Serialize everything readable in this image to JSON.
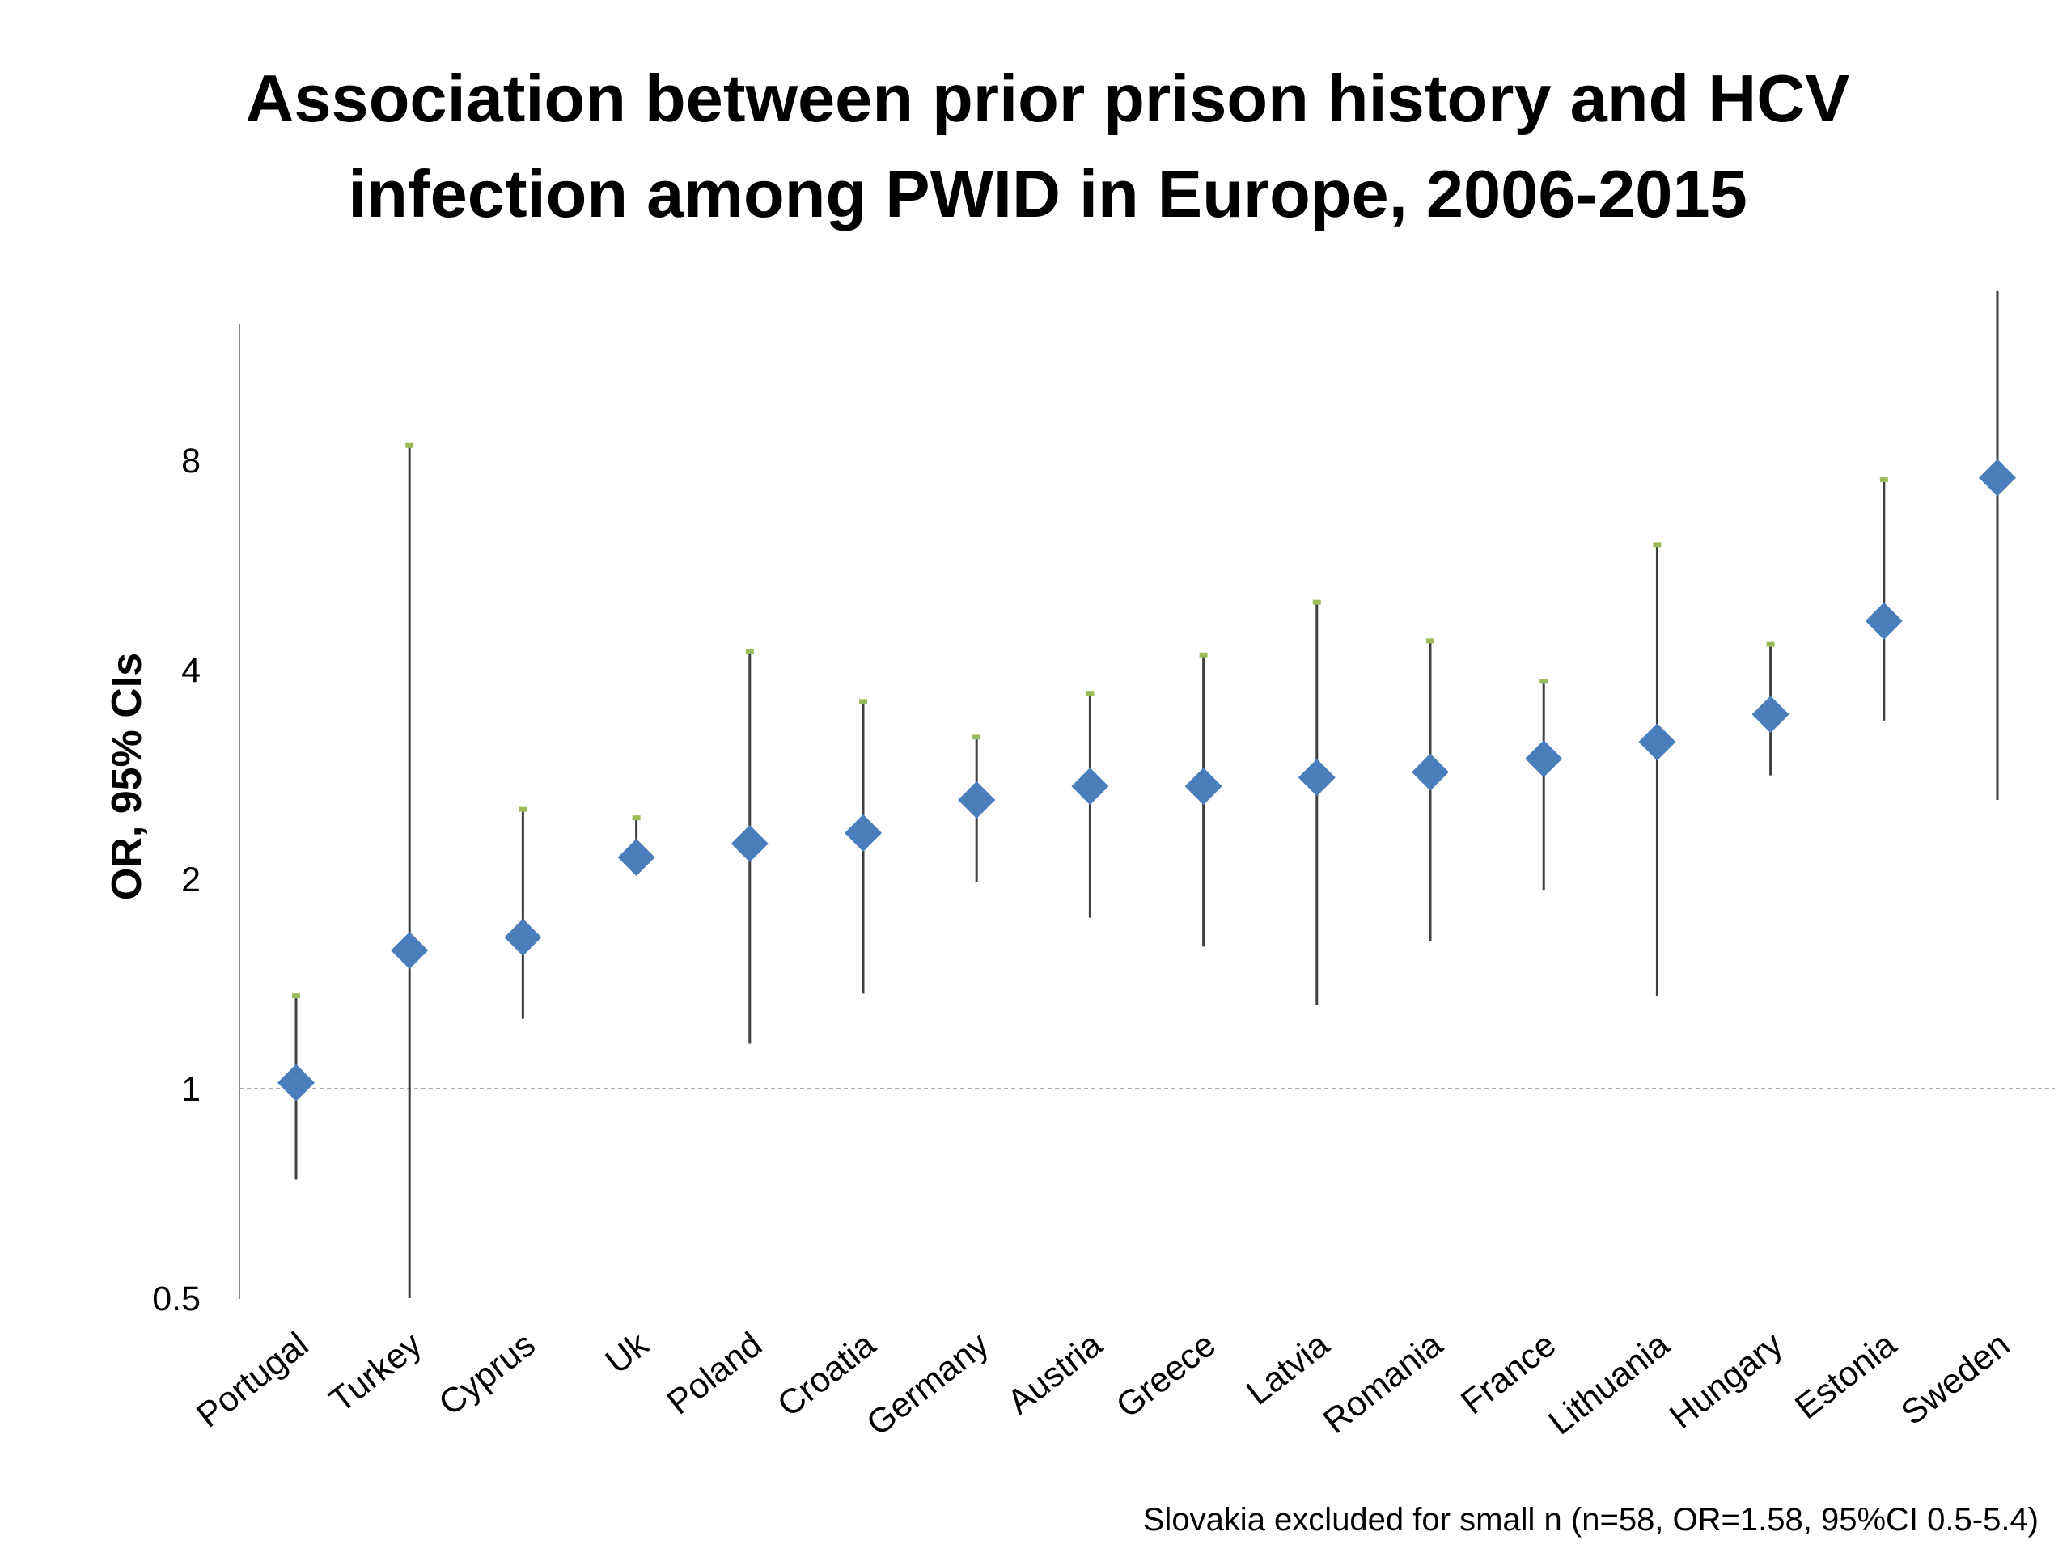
{
  "chart_data": {
    "type": "scatter",
    "title_lines": [
      "Association between prior prison history and HCV",
      "infection among PWID in Europe, 2006-2015"
    ],
    "ylabel": "OR, 95% CIs",
    "xlabel": "",
    "y_scale": "log2",
    "ylim": [
      0.5,
      12
    ],
    "yticks": [
      0.5,
      1,
      2,
      4,
      8
    ],
    "ytick_labels": [
      "0.5",
      "1",
      "2",
      "4",
      "8"
    ],
    "reference_line": 1,
    "grid": false,
    "legend": "none",
    "categories": [
      "Portugal",
      "Turkey",
      "Cyprus",
      "Uk",
      "Poland",
      "Croatia",
      "Germany",
      "Austria",
      "Greece",
      "Latvia",
      "Romania",
      "France",
      "Lithuania",
      "Hungary",
      "Estonia",
      "Sweden"
    ],
    "series": [
      {
        "values": [
          1.02,
          1.58,
          1.65,
          2.15,
          2.25,
          2.33,
          2.6,
          2.72,
          2.72,
          2.8,
          2.85,
          2.98,
          3.15,
          3.45,
          4.7,
          7.55
        ],
        "ci_lower": [
          0.74,
          0.5,
          1.26,
          2.15,
          1.16,
          1.37,
          1.98,
          1.76,
          1.6,
          1.32,
          1.63,
          1.93,
          1.36,
          2.82,
          3.38,
          2.6
        ],
        "ci_upper": [
          1.36,
          8.4,
          2.52,
          2.45,
          4.25,
          3.6,
          3.2,
          3.7,
          4.2,
          5.0,
          4.4,
          3.85,
          6.05,
          4.35,
          7.5,
          14.0
        ]
      }
    ],
    "note": "Slovakia excluded for small n (n=58, OR=1.58, 95%CI 0.5-5.4)",
    "colors": {
      "marker": "#4a7ebb",
      "ci_line": "#404040",
      "cap": "#9bbb59",
      "axis": "#868686",
      "reference": "#a6a6a6"
    }
  }
}
